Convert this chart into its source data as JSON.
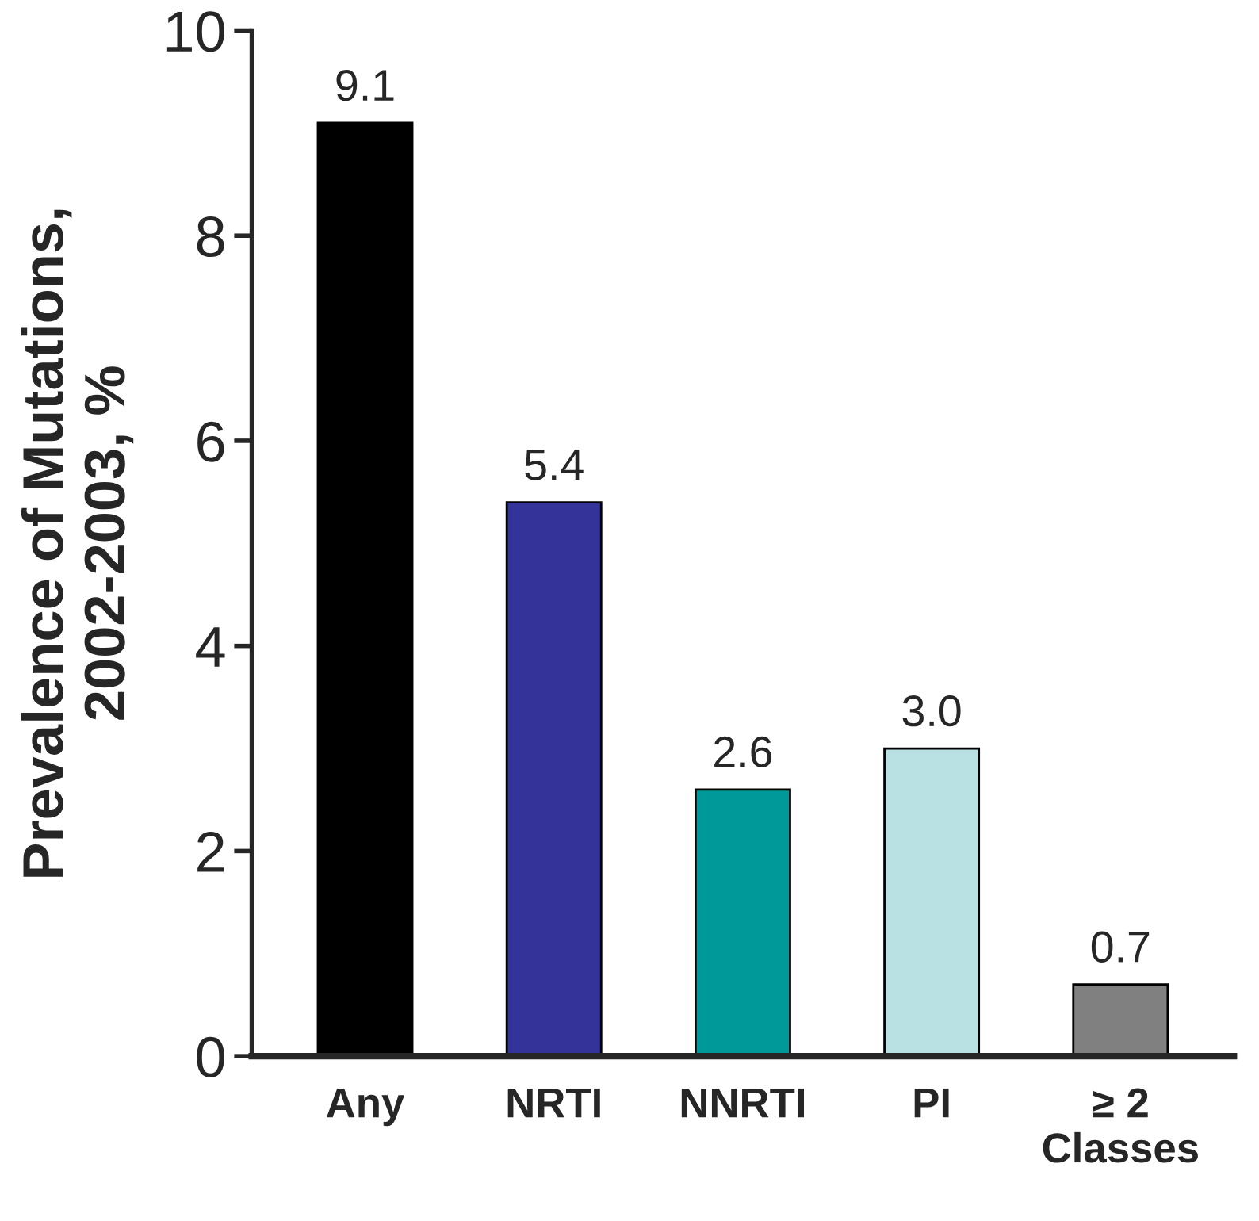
{
  "chart_data": {
    "type": "bar",
    "ylabel": "Prevalence of Mutations,\n2002-2003, %",
    "categories": [
      "Any",
      "NRTI",
      "NNRTI",
      "PI",
      "≥ 2\nClasses"
    ],
    "values": [
      9.1,
      5.4,
      2.6,
      3.0,
      0.7
    ],
    "colors": [
      "#000000",
      "#333399",
      "#009999",
      "#b9e0e3",
      "#808080"
    ],
    "ylim": [
      0,
      10
    ],
    "yticks": [
      0,
      2,
      4,
      6,
      8,
      10
    ],
    "value_labels": [
      "9.1",
      "5.4",
      "2.6",
      "3.0",
      "0.7"
    ],
    "grid": false,
    "legend": false
  }
}
